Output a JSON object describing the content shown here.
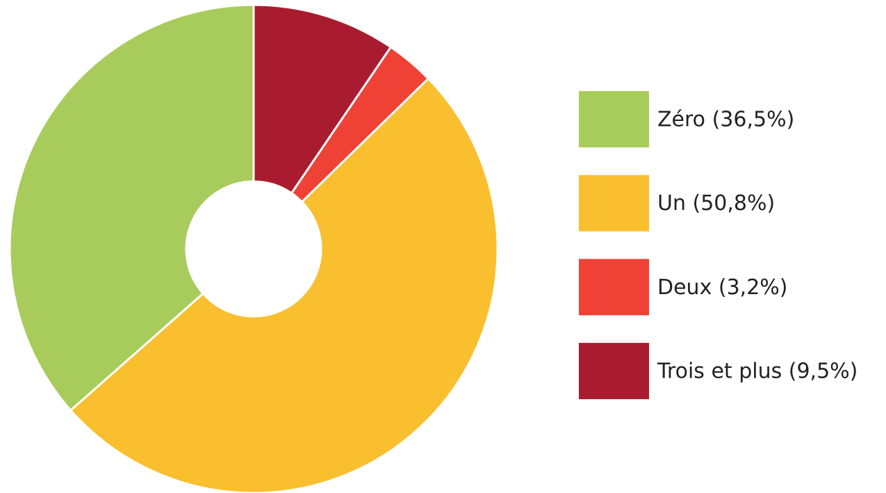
{
  "chart_data": {
    "type": "donut",
    "categories": [
      "Zéro (36,5%)",
      "Un (50,8%)",
      "Deux (3,2%)",
      "Trois et plus (9,5%)"
    ],
    "values": [
      36.5,
      50.8,
      3.2,
      9.5
    ],
    "colors": [
      "#a8cc5c",
      "#f9bf2f",
      "#ef4136",
      "#a91c2f"
    ],
    "legend": "right"
  }
}
